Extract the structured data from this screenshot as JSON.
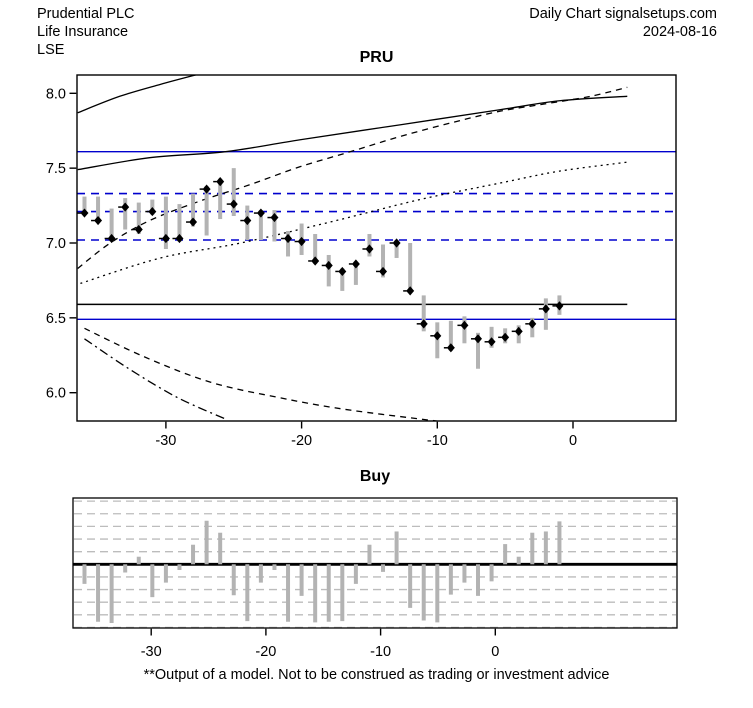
{
  "header": {
    "company": "Prudential PLC",
    "sector": "Life Insurance",
    "exchange": "LSE",
    "chart_type": "Daily Chart signalsetups.com",
    "date": "2024-08-16"
  },
  "main_chart": {
    "title": "PRU"
  },
  "bottom_chart": {
    "title": "Buy"
  },
  "footer": {
    "disclaimer": "**Output of a model. Not to be construed as trading or investment advice"
  },
  "colors": {
    "blue": "#0000cd",
    "bar_gray": "#b3b3b3",
    "grid_gray": "#bcbcbc",
    "black": "#000000"
  },
  "chart_data": [
    {
      "type": "bar",
      "subtype": "high-low-close",
      "title": "PRU",
      "xlabel": "",
      "ylabel": "",
      "xlim": [
        -36.6,
        7.6
      ],
      "ylim": [
        5.81,
        8.12
      ],
      "x_ticks": [
        -30,
        -20,
        -10,
        0
      ],
      "x_tick_labels": [
        "-30",
        "-20",
        "-10",
        "0"
      ],
      "y_ticks": [
        8.0,
        7.5,
        7.0,
        6.5,
        6.0
      ],
      "y_tick_labels": [
        "8.0",
        "7.5",
        "7.0",
        "6.5",
        "6.0"
      ],
      "grid": false,
      "legend": "none",
      "x": [
        -36,
        -35,
        -34,
        -33,
        -32,
        -31,
        -30,
        -29,
        -28,
        -27,
        -26,
        -25,
        -24,
        -23,
        -22,
        -21,
        -20,
        -19,
        -18,
        -17,
        -16,
        -15,
        -14,
        -13,
        -12,
        -11,
        -10,
        -9,
        -8,
        -7,
        -6,
        -5,
        -4,
        -3,
        -2,
        -1
      ],
      "high": [
        7.31,
        7.31,
        7.23,
        7.3,
        7.27,
        7.29,
        7.31,
        7.26,
        7.33,
        7.38,
        7.43,
        7.5,
        7.25,
        7.22,
        7.22,
        7.08,
        7.13,
        7.06,
        6.92,
        6.83,
        6.87,
        7.06,
        6.99,
        7.02,
        7.0,
        6.65,
        6.47,
        6.48,
        6.51,
        6.4,
        6.44,
        6.43,
        6.45,
        6.5,
        6.63,
        6.65
      ],
      "low": [
        7.19,
        7.14,
        7.01,
        7.09,
        7.06,
        7.19,
        6.96,
        7.01,
        7.11,
        7.05,
        7.16,
        7.18,
        7.02,
        7.02,
        7.01,
        6.91,
        6.92,
        6.86,
        6.71,
        6.68,
        6.72,
        6.91,
        6.77,
        6.9,
        6.67,
        6.41,
        6.23,
        6.28,
        6.33,
        6.16,
        6.3,
        6.33,
        6.33,
        6.37,
        6.42,
        6.52
      ],
      "close": [
        7.2,
        7.15,
        7.03,
        7.24,
        7.09,
        7.21,
        7.03,
        7.03,
        7.14,
        7.36,
        7.41,
        7.26,
        7.15,
        7.2,
        7.17,
        7.03,
        7.01,
        6.88,
        6.85,
        6.81,
        6.86,
        6.96,
        6.81,
        7.0,
        6.68,
        6.46,
        6.38,
        6.3,
        6.45,
        6.36,
        6.34,
        6.37,
        6.41,
        6.46,
        6.56,
        6.58
      ],
      "hlines": {
        "blue_solid": [
          7.61,
          6.49
        ],
        "blue_dashed": [
          7.33,
          7.21,
          7.02
        ],
        "black_solid": {
          "y": 6.59,
          "x_start": -36.6,
          "x_end": 4
        }
      },
      "curves": [
        {
          "name": "upper-steep-solid",
          "style": "solid",
          "points": [
            [
              -36.5,
              7.87
            ],
            [
              -33.4,
              7.98
            ],
            [
              -30.4,
              8.06
            ],
            [
              -27.5,
              8.13
            ]
          ]
        },
        {
          "name": "upper-band-solid",
          "style": "solid",
          "points": [
            [
              -36.5,
              7.49
            ],
            [
              -31.2,
              7.57
            ],
            [
              -25.6,
              7.61
            ],
            [
              -20.1,
              7.69
            ],
            [
              -12.7,
              7.79
            ],
            [
              -5.4,
              7.89
            ],
            [
              -1,
              7.95
            ],
            [
              4,
              7.98
            ]
          ]
        },
        {
          "name": "mid-rising-dashed",
          "style": "dashed",
          "points": [
            [
              -36.5,
              6.83
            ],
            [
              -34.1,
              7.0
            ],
            [
              -31.2,
              7.15
            ],
            [
              -27.5,
              7.28
            ],
            [
              -23.8,
              7.39
            ],
            [
              -20.1,
              7.51
            ],
            [
              -16.4,
              7.61
            ],
            [
              -12.8,
              7.71
            ],
            [
              -9.1,
              7.8
            ],
            [
              -5.4,
              7.88
            ],
            [
              -2,
              7.93
            ],
            [
              1.3,
              7.98
            ],
            [
              4,
              8.04
            ]
          ]
        },
        {
          "name": "mid-rising-dotted",
          "style": "dotted",
          "points": [
            [
              -36.3,
              6.73
            ],
            [
              -30.4,
              6.9
            ],
            [
              -24.5,
              7.0
            ],
            [
              -17.9,
              7.14
            ],
            [
              -11.3,
              7.29
            ],
            [
              -5.4,
              7.4
            ],
            [
              -1,
              7.48
            ],
            [
              4,
              7.54
            ]
          ]
        },
        {
          "name": "lower-falling-dashed",
          "style": "dashed",
          "points": [
            [
              -36,
              6.43
            ],
            [
              -31.6,
              6.24
            ],
            [
              -26.7,
              6.07
            ],
            [
              -21.8,
              5.97
            ],
            [
              -16.9,
              5.89
            ],
            [
              -10,
              5.81
            ]
          ]
        },
        {
          "name": "lower-falling-dashdot",
          "style": "dashdot",
          "points": [
            [
              -36,
              6.36
            ],
            [
              -32.9,
              6.17
            ],
            [
              -29.2,
              5.97
            ],
            [
              -25.5,
              5.82
            ]
          ]
        }
      ]
    },
    {
      "type": "bar",
      "title": "Buy",
      "xlabel": "",
      "ylabel": "",
      "x_ticks": [
        -30,
        -20,
        -10,
        0
      ],
      "x_tick_labels": [
        "-30",
        "-20",
        "-10",
        "0"
      ],
      "ylim": [
        -1.03,
        1.03
      ],
      "grid_step": 0.2,
      "grid": true,
      "x": [
        -36,
        -35,
        -34,
        -33,
        -32,
        -31,
        -30,
        -29,
        -28,
        -27,
        -26,
        -25,
        -24,
        -23,
        -22,
        -21,
        -20,
        -19,
        -18,
        -17,
        -16,
        -15,
        -14,
        -13,
        -12,
        -11,
        -10,
        -9,
        -8,
        -7,
        -6,
        -5,
        -4,
        -3,
        -2,
        -1
      ],
      "values": [
        -0.31,
        -0.91,
        -0.93,
        -0.13,
        0.12,
        -0.52,
        -0.29,
        -0.09,
        0.31,
        0.69,
        0.5,
        -0.49,
        -0.9,
        -0.29,
        -0.09,
        -0.91,
        -0.5,
        -0.92,
        -0.91,
        -0.9,
        -0.31,
        0.31,
        -0.12,
        0.52,
        -0.69,
        -0.89,
        -0.92,
        -0.48,
        -0.29,
        -0.5,
        -0.27,
        0.32,
        0.12,
        0.5,
        0.52,
        0.68
      ]
    }
  ]
}
